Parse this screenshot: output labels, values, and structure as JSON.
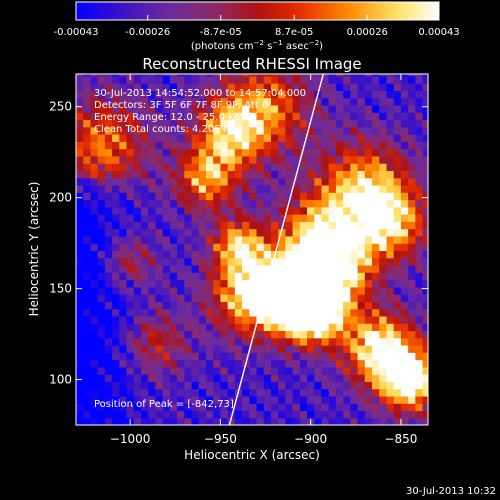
{
  "colorbar": {
    "tick_labels": [
      "-0.00043",
      "-0.00026",
      "-8.7e-05",
      "8.7e-05",
      "0.00026",
      "0.00043"
    ],
    "tick_values": [
      -0.00043,
      -0.00026,
      -8.7e-05,
      8.7e-05,
      0.00026,
      0.00043
    ],
    "range": [
      -0.00043,
      0.00043
    ],
    "units_prefix": "(photons cm",
    "units_exp1": "−2",
    "units_mid": " s",
    "units_exp2": "−1",
    "units_suffix": " asec",
    "units_exp3": "−2",
    "units_close": ")",
    "colormap": [
      "#0000ff",
      "#3a10c8",
      "#6a2aa0",
      "#8a2a6a",
      "#b01010",
      "#e83000",
      "#ff8a00",
      "#ffe060",
      "#ffffff"
    ]
  },
  "chart_data": {
    "type": "heatmap",
    "title": "Reconstructed RHESSI Image",
    "xlabel": "Heliocentric X (arcsec)",
    "ylabel": "Heliocentric Y (arcsec)",
    "xlim": [
      -1030,
      -835
    ],
    "ylim": [
      75,
      268
    ],
    "x_ticks": [
      -1000,
      -950,
      -900,
      -850
    ],
    "x_tick_labels": [
      "−1000",
      "−950",
      "−900",
      "−850"
    ],
    "y_ticks": [
      100,
      150,
      200,
      250
    ],
    "y_tick_labels": [
      "100",
      "150",
      "200",
      "250"
    ],
    "limb_line": {
      "x": [
        -945,
        -893
      ],
      "y": [
        75,
        268
      ]
    },
    "peak": {
      "x": -842,
      "y": 73
    },
    "annotations": [
      "30-Jul-2013 14:54:52.000 to 14:57:04.000",
      "Detectors: 3F 5F 6F 7F 8F 9F, Att 0",
      "Energy Range: 12.0 - 25.0 keV",
      "Clean    Total counts: 4.20E+03",
      "Position of Peak = [-842,73]"
    ]
  },
  "footer": {
    "timestamp": "30-Jul-2013 10:32"
  }
}
